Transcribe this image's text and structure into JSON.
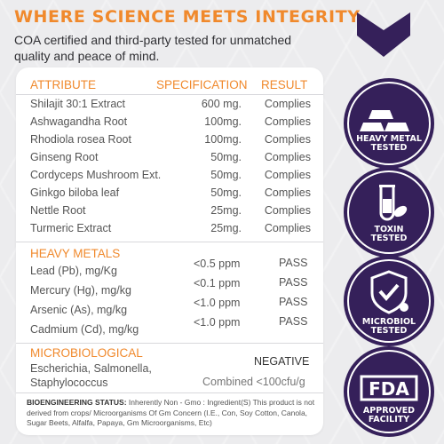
{
  "header": {
    "title": "WHERE SCIENCE MEETS INTEGRITY",
    "subtitle": "COA certified and third-party tested for unmatched quality and peace of mind."
  },
  "colors": {
    "accent": "#f0892c",
    "brand_purple": "#35205a",
    "text": "#555555"
  },
  "table": {
    "headers": {
      "attribute": "ATTRIBUTE",
      "specification": "SPECIFICATION",
      "result": "RESULT"
    },
    "ingredients": [
      {
        "name": "Shilajit 30:1 Extract",
        "spec": "600 mg.",
        "result": "Complies"
      },
      {
        "name": "Ashwagandha Root",
        "spec": "100mg.",
        "result": "Complies"
      },
      {
        "name": "Rhodiola rosea Root",
        "spec": "100mg.",
        "result": "Complies"
      },
      {
        "name": "Ginseng Root",
        "spec": "50mg.",
        "result": "Complies"
      },
      {
        "name": "Cordyceps Mushroom Ext.",
        "spec": "50mg.",
        "result": "Complies"
      },
      {
        "name": "Ginkgo biloba leaf",
        "spec": "50mg.",
        "result": "Complies"
      },
      {
        "name": "Nettle Root",
        "spec": "25mg.",
        "result": "Complies"
      },
      {
        "name": "Turmeric Extract",
        "spec": "25mg.",
        "result": "Complies"
      }
    ],
    "heavy_metals": {
      "title": "HEAVY METALS",
      "rows": [
        {
          "name": "Lead (Pb), mg/Kg",
          "value": "<0.5 ppm",
          "result": "PASS"
        },
        {
          "name": "Mercury (Hg), mg/kg",
          "value": "<0.1 ppm",
          "result": "PASS"
        },
        {
          "name": "Arsenic (As), mg/kg",
          "value": "<1.0 ppm",
          "result": "PASS"
        },
        {
          "name": "Cadmium (Cd), mg/kg",
          "value": "<1.0 ppm",
          "result": "PASS"
        }
      ]
    },
    "microbiological": {
      "title": "MICROBIOLOGICAL",
      "line1": "Escherichia, Salmonella,",
      "line2": "Staphylococcus",
      "result": "NEGATIVE",
      "combined": "Combined <100cfu/g"
    },
    "bioengineering": {
      "label": "BIOENGINEERING STATUS:",
      "text": " Inherently Non - Gmo : Ingredient(S) This product is not derived from crops/ Microorganisms Of Gm Concern (I.E., Con, Soy Cotton, Canola, Sugar Beets, Alfalfa, Papaya, Gm Microorganisms, Etc)"
    }
  },
  "badges": [
    {
      "icon": "gold-bars-icon",
      "line1": "HEAVY METAL",
      "line2": "TESTED"
    },
    {
      "icon": "test-tube-leaf-icon",
      "line1": "TOXIN",
      "line2": "TESTED"
    },
    {
      "icon": "shield-check-icon",
      "line1": "MICROBIOL",
      "line2": "TESTED"
    },
    {
      "icon": "fda-icon",
      "line1": "APPROVED",
      "line2": "FACILITY"
    }
  ]
}
